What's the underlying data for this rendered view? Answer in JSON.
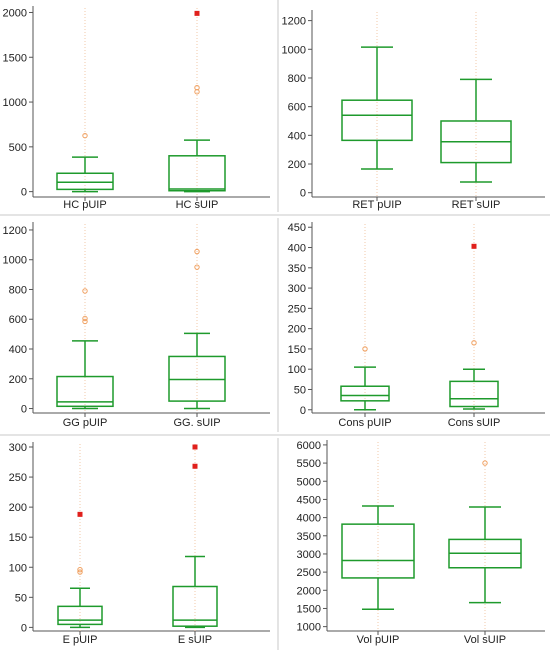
{
  "colors": {
    "box": "#1e9a2c",
    "outlier_far": "#e0201c",
    "outlier_near": "#f0a060",
    "guide_line": "#f1c9a9",
    "axis": "#555555",
    "divider": "#c8c8c8"
  },
  "chart_data": [
    {
      "type": "box",
      "panel": "top-left",
      "categories": [
        "HC pUIP",
        "HC sUIP"
      ],
      "ylim": [
        -60,
        2050
      ],
      "yticks": [
        0,
        500,
        1000,
        1500,
        2000
      ],
      "series": [
        {
          "min": 0,
          "q1": 25,
          "median": 105,
          "q3": 205,
          "max": 385,
          "near_outliers": [
            625
          ],
          "far_outliers": []
        },
        {
          "min": 0,
          "q1": 10,
          "median": 30,
          "q3": 400,
          "max": 575,
          "near_outliers": [
            1115,
            1160
          ],
          "far_outliers": [
            1990
          ]
        }
      ]
    },
    {
      "type": "box",
      "panel": "top-right",
      "categories": [
        "RET pUIP",
        "RET sUIP"
      ],
      "ylim": [
        -30,
        1260
      ],
      "yticks": [
        0,
        200,
        400,
        600,
        800,
        1000,
        1200
      ],
      "series": [
        {
          "min": 165,
          "q1": 365,
          "median": 540,
          "q3": 645,
          "max": 1015,
          "near_outliers": [],
          "far_outliers": []
        },
        {
          "min": 75,
          "q1": 210,
          "median": 355,
          "q3": 500,
          "max": 790,
          "near_outliers": [],
          "far_outliers": []
        }
      ]
    },
    {
      "type": "box",
      "panel": "middle-left",
      "categories": [
        "GG pUIP",
        "GG. sUIP"
      ],
      "ylim": [
        -30,
        1240
      ],
      "yticks": [
        0,
        200,
        400,
        600,
        800,
        1000,
        1200
      ],
      "series": [
        {
          "min": 0,
          "q1": 15,
          "median": 45,
          "q3": 215,
          "max": 455,
          "near_outliers": [
            585,
            605,
            790
          ],
          "far_outliers": []
        },
        {
          "min": 0,
          "q1": 50,
          "median": 195,
          "q3": 350,
          "max": 505,
          "near_outliers": [
            950,
            1055
          ],
          "far_outliers": []
        }
      ]
    },
    {
      "type": "box",
      "panel": "middle-right",
      "categories": [
        "Cons pUIP",
        "Cons sUIP"
      ],
      "ylim": [
        -8,
        458
      ],
      "yticks": [
        0,
        50,
        100,
        150,
        200,
        250,
        300,
        350,
        400,
        450
      ],
      "series": [
        {
          "min": 0,
          "q1": 22,
          "median": 35,
          "q3": 58,
          "max": 105,
          "near_outliers": [
            150
          ],
          "far_outliers": []
        },
        {
          "min": 2,
          "q1": 8,
          "median": 27,
          "q3": 70,
          "max": 100,
          "near_outliers": [
            165
          ],
          "far_outliers": [
            403
          ]
        }
      ]
    },
    {
      "type": "box",
      "panel": "bottom-left",
      "categories": [
        "E pUIP",
        "E sUIP"
      ],
      "ylim": [
        -6,
        305
      ],
      "yticks": [
        0,
        50,
        100,
        150,
        200,
        250,
        300
      ],
      "series": [
        {
          "min": 0,
          "q1": 5,
          "median": 12,
          "q3": 35,
          "max": 65,
          "near_outliers": [
            92,
            96
          ],
          "far_outliers": [
            188
          ]
        },
        {
          "min": 0,
          "q1": 2,
          "median": 12,
          "q3": 68,
          "max": 118,
          "near_outliers": [],
          "far_outliers": [
            268,
            300
          ]
        }
      ]
    },
    {
      "type": "box",
      "panel": "bottom-right",
      "categories": [
        "Vol pUIP",
        "Vol sUIP"
      ],
      "ylim": [
        880,
        6080
      ],
      "yticks": [
        1000,
        1500,
        2000,
        2500,
        3000,
        3500,
        4000,
        4500,
        5000,
        5500,
        6000
      ],
      "series": [
        {
          "min": 1480,
          "q1": 2340,
          "median": 2820,
          "q3": 3820,
          "max": 4320,
          "near_outliers": [],
          "far_outliers": []
        },
        {
          "min": 1660,
          "q1": 2620,
          "median": 3020,
          "q3": 3400,
          "max": 4290,
          "near_outliers": [
            5500
          ],
          "far_outliers": []
        }
      ]
    }
  ]
}
